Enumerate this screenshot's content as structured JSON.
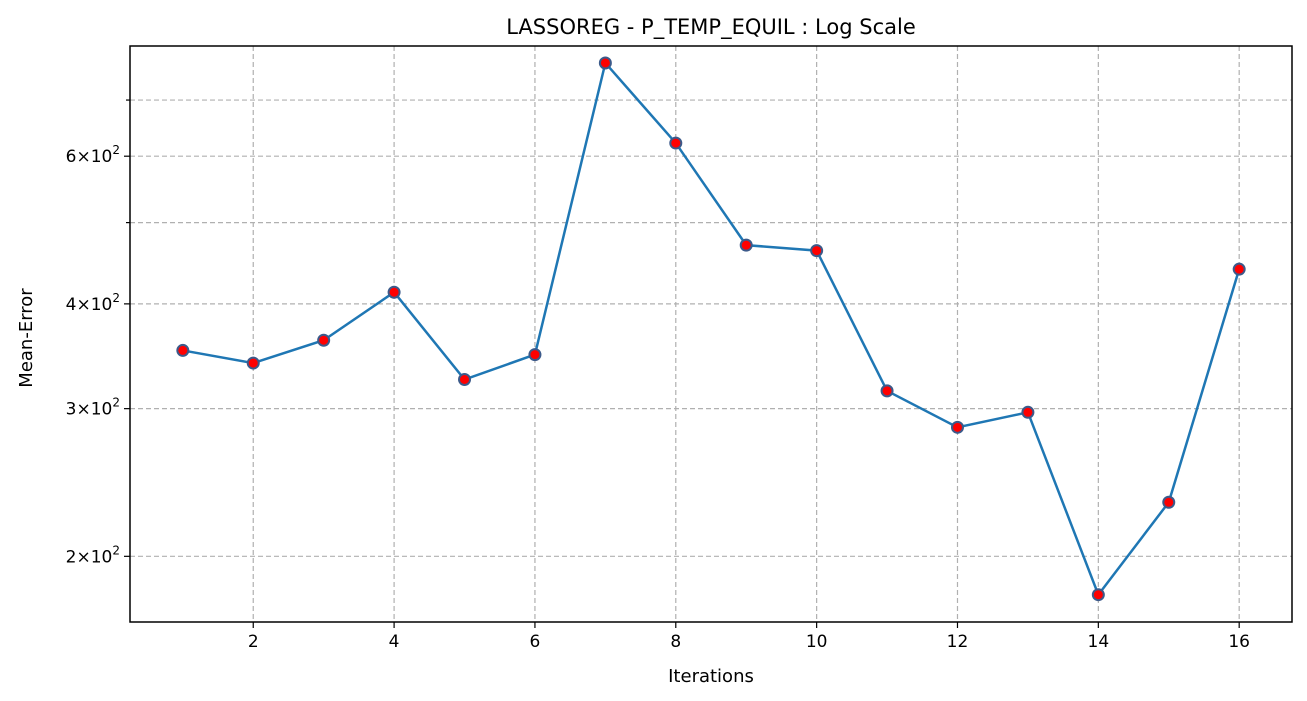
{
  "chart_data": {
    "type": "line",
    "title": "LASSOREG - P_TEMP_EQUIL : Log Scale",
    "xlabel": "Iterations",
    "ylabel": "Mean-Error",
    "yscale": "log",
    "xlim": [
      0.25,
      16.75
    ],
    "ylim": [
      167,
      812
    ],
    "x_ticks": [
      2,
      4,
      6,
      8,
      10,
      12,
      14,
      16
    ],
    "x_tick_labels": [
      "2",
      "4",
      "6",
      "8",
      "10",
      "12",
      "14",
      "16"
    ],
    "y_major_ticks": [
      200,
      300,
      400,
      600
    ],
    "y_major_tick_labels": [
      {
        "base": "2×10",
        "exp": "2"
      },
      {
        "base": "3×10",
        "exp": "2"
      },
      {
        "base": "4×10",
        "exp": "2"
      },
      {
        "base": "6×10",
        "exp": "2"
      }
    ],
    "y_minor_ticks": [
      500,
      700
    ],
    "grid": true,
    "colors": {
      "line": "#1f77b4",
      "marker_face": "#ff0000",
      "marker_edge": "#3c5a8a"
    },
    "x": [
      1,
      2,
      3,
      4,
      5,
      6,
      7,
      8,
      9,
      10,
      11,
      12,
      13,
      14,
      15,
      16
    ],
    "series": [
      {
        "values": [
          352,
          340,
          362,
          413,
          325,
          348,
          775,
          622,
          470,
          463,
          315,
          285,
          297,
          180,
          232,
          440
        ]
      }
    ]
  }
}
